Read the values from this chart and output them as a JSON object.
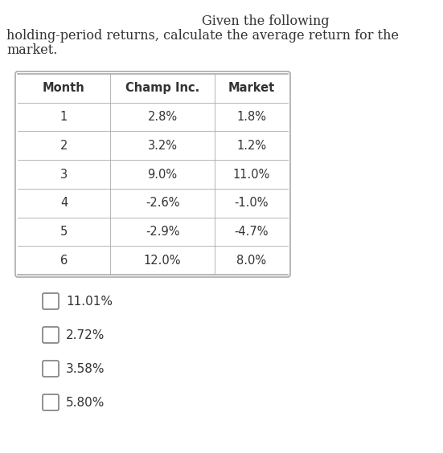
{
  "title_line1": "Given the following",
  "title_line2": "holding-period returns, calculate the average return for the",
  "title_line3": "market.",
  "table_headers": [
    "Month",
    "Champ Inc.",
    "Market"
  ],
  "table_rows": [
    [
      "1",
      "2.8%",
      "1.8%"
    ],
    [
      "2",
      "3.2%",
      "1.2%"
    ],
    [
      "3",
      "9.0%",
      "11.0%"
    ],
    [
      "4",
      "-2.6%",
      "-1.0%"
    ],
    [
      "5",
      "-2.9%",
      "-4.7%"
    ],
    [
      "6",
      "12.0%",
      "8.0%"
    ]
  ],
  "choices": [
    "11.01%",
    "2.72%",
    "3.58%",
    "5.80%"
  ],
  "bg_color": "#ffffff",
  "text_color": "#333333",
  "border_color": "#aaaaaa",
  "header_font_size": 10.5,
  "body_font_size": 10.5,
  "choice_font_size": 11,
  "title_font_size": 11.5
}
